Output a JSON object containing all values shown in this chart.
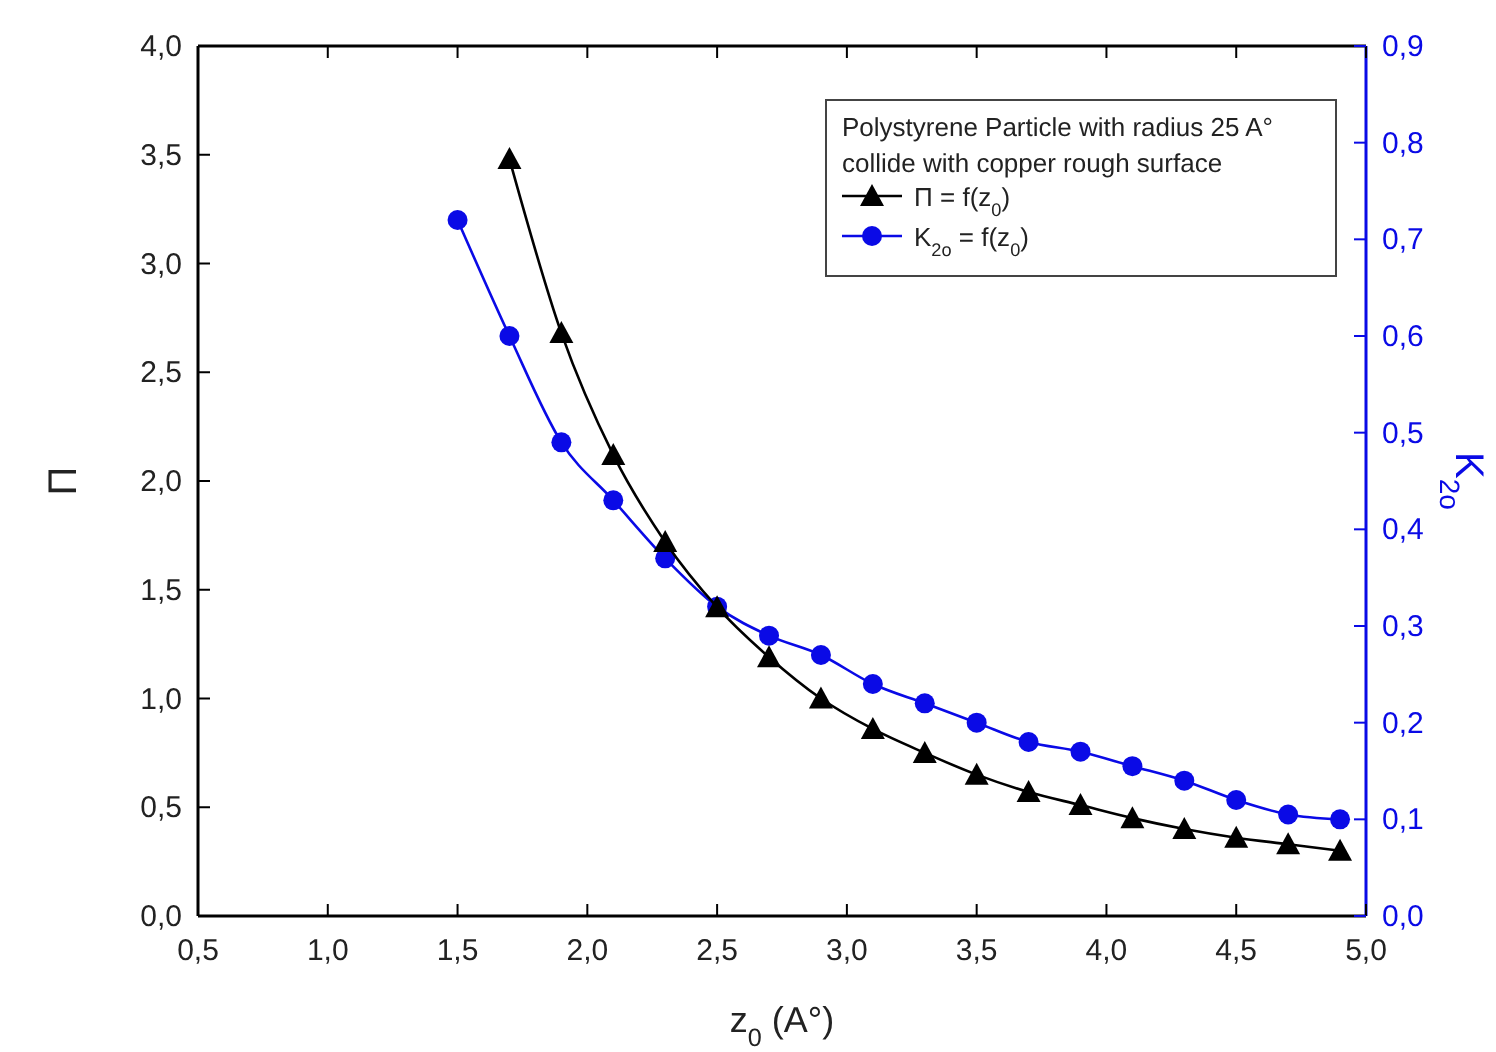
{
  "chart_data": {
    "type": "line",
    "xlabel": "z$_{0}$ (A°)",
    "ylabel": "Π",
    "y2label": "K$_{2o}$",
    "legend_title": "Polystyrene Particle with radius 25 A°\ncollide with copper rough surface",
    "legend": "top right",
    "grid": false,
    "xlim": [
      0.5,
      5.0
    ],
    "xticks": [
      {
        "value": 0.5,
        "label": "0,5"
      },
      {
        "value": 1,
        "label": "1,0"
      },
      {
        "value": 1.5,
        "label": "1,5"
      },
      {
        "value": 2,
        "label": "2,0"
      },
      {
        "value": 2.5,
        "label": "2,5"
      },
      {
        "value": 3,
        "label": "3,0"
      },
      {
        "value": 3.5,
        "label": "3,5"
      },
      {
        "value": 4,
        "label": "4,0"
      },
      {
        "value": 4.5,
        "label": "4,5"
      },
      {
        "value": 5,
        "label": "5,0"
      }
    ],
    "ylim": [
      0,
      4
    ],
    "yticks": [
      {
        "value": 0,
        "label": "0,0"
      },
      {
        "value": 0.5,
        "label": "0,5"
      },
      {
        "value": 1,
        "label": "1,0"
      },
      {
        "value": 1.5,
        "label": "1,5"
      },
      {
        "value": 2,
        "label": "2,0"
      },
      {
        "value": 2.5,
        "label": "2,5"
      },
      {
        "value": 3,
        "label": "3,0"
      },
      {
        "value": 3.5,
        "label": "3,5"
      },
      {
        "value": 4,
        "label": "4,0"
      }
    ],
    "y2lim": [
      0,
      0.9
    ],
    "y2ticks": [
      {
        "value": 0,
        "label": "0,0"
      },
      {
        "value": 0.1,
        "label": "0,1"
      },
      {
        "value": 0.2,
        "label": "0,2"
      },
      {
        "value": 0.3,
        "label": "0,3"
      },
      {
        "value": 0.4,
        "label": "0,4"
      },
      {
        "value": 0.5,
        "label": "0,5"
      },
      {
        "value": 0.6,
        "label": "0,6"
      },
      {
        "value": 0.7,
        "label": "0,7"
      },
      {
        "value": 0.8,
        "label": "0,8"
      },
      {
        "value": 0.9,
        "label": "0,9"
      }
    ],
    "series": [
      {
        "name": "Π = f(z$_{0}$)",
        "color": "#000000",
        "marker": "triangle",
        "x": [
          1.7,
          1.9,
          2.1,
          2.3,
          2.5,
          2.7,
          2.9,
          3.1,
          3.3,
          3.5,
          3.7,
          3.9,
          4.1,
          4.3,
          4.5,
          4.7,
          4.9
        ],
        "values": [
          3.48,
          2.68,
          2.12,
          1.72,
          1.42,
          1.19,
          1.0,
          0.86,
          0.75,
          0.65,
          0.57,
          0.51,
          0.45,
          0.4,
          0.36,
          0.33,
          0.3
        ]
      },
      {
        "name": "K$_{2o}$ = f(z$_{0}$)",
        "color": "#0a0ae6",
        "marker": "circle",
        "axis": "y2",
        "x": [
          1.5,
          1.7,
          1.9,
          2.1,
          2.3,
          2.5,
          2.7,
          2.9,
          3.1,
          3.3,
          3.5,
          3.7,
          3.9,
          4.1,
          4.3,
          4.5,
          4.7,
          4.9
        ],
        "values": [
          0.72,
          0.6,
          0.49,
          0.43,
          0.37,
          0.32,
          0.29,
          0.27,
          0.24,
          0.22,
          0.2,
          0.18,
          0.17,
          0.155,
          0.14,
          0.12,
          0.105,
          0.1
        ]
      }
    ]
  }
}
